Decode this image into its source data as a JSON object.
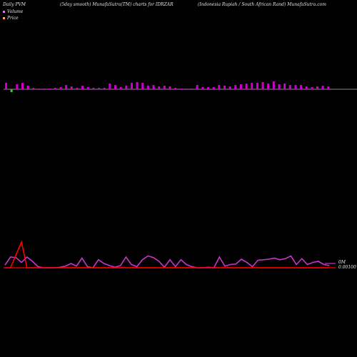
{
  "header": {
    "left": "Daily PVM",
    "center": "(5day smooth) MunafaSutra(TM) charts for IDRZAR",
    "right": "(Indonesia Rupiah / South African Rand) MunafaSutra.com"
  },
  "legend": [
    {
      "label": "Volume",
      "color": "#ff66ff"
    },
    {
      "label": "Price",
      "color": "#ffaa66"
    }
  ],
  "chart_data": [
    {
      "type": "bar",
      "series": [
        {
          "name": "Volume",
          "color": "#cc00cc",
          "values": [
            9,
            -4,
            7,
            9,
            5,
            2,
            1,
            1,
            1,
            2,
            3,
            6,
            4,
            2,
            5,
            3,
            2,
            2,
            2,
            8,
            6,
            3,
            5,
            9,
            10,
            9,
            5,
            6,
            4,
            5,
            4,
            2,
            1,
            1,
            1,
            6,
            3,
            3,
            3,
            6,
            5,
            4,
            6,
            7,
            8,
            9,
            9,
            10,
            8,
            11,
            7,
            8,
            6,
            6,
            6,
            4,
            3,
            4,
            5,
            4
          ]
        }
      ],
      "note": "down bars drawn in green"
    },
    {
      "type": "line",
      "series": [
        {
          "name": "Price",
          "color": "#ff0000",
          "values": [
            0,
            0,
            2,
            4,
            0,
            0,
            0,
            0,
            0,
            0,
            0,
            0,
            0,
            0,
            0,
            0,
            0,
            0,
            0,
            0,
            0,
            0,
            0,
            0,
            0,
            0,
            0,
            0,
            0,
            0,
            0,
            0,
            0,
            0,
            0,
            0,
            0,
            0,
            0,
            0,
            0,
            0,
            0,
            0,
            0,
            0,
            0,
            0,
            0,
            0,
            0,
            0,
            0,
            0,
            0,
            0,
            0,
            0,
            0,
            0
          ]
        },
        {
          "name": "Smooth",
          "color": "#cc33cc",
          "values": [
            0.05,
            0.2,
            0.19,
            0.1,
            0.2,
            0.12,
            0.02,
            0,
            0,
            0,
            0.01,
            0.03,
            0.08,
            0.03,
            0.18,
            0.02,
            0,
            0.15,
            0.08,
            0.04,
            0.01,
            0.04,
            0.2,
            0.06,
            0.02,
            0.15,
            0.22,
            0.19,
            0.12,
            0.01,
            0.15,
            0.02,
            0.15,
            0.06,
            0.02,
            0,
            0,
            0.01,
            0,
            0.2,
            0.03,
            0.06,
            0.07,
            0.16,
            0.1,
            0.02,
            0.14,
            0.15,
            0.16,
            0.18,
            0.15,
            0.17,
            0.22,
            0.06,
            0.17,
            0.06,
            0.1,
            0.12,
            0.06,
            0.04
          ]
        }
      ],
      "ylabels": [
        "0M",
        "0.00100"
      ]
    }
  ]
}
